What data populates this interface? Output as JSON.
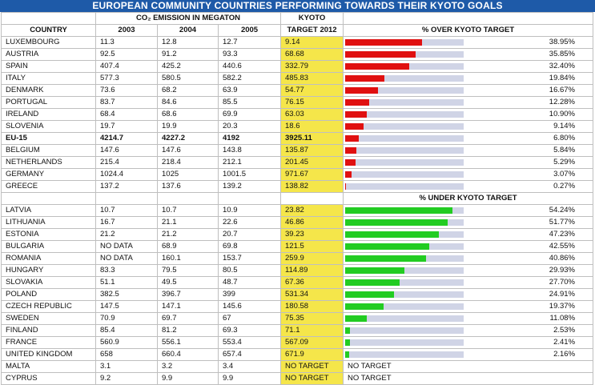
{
  "chart_data": {
    "type": "table",
    "title": "EUROPEAN COMMUNITY COUNTRIES PERFORMING TOWARDS THEIR KYOTO GOALS",
    "headers": {
      "country": "COUNTRY",
      "emission_group": "CO₂ EMISSION IN MEGATON",
      "years": [
        "2003",
        "2004",
        "2005"
      ],
      "kyoto": [
        "KYOTO",
        "TARGET 2012"
      ],
      "over": "% OVER KYOTO TARGET",
      "under": "% UNDER KYOTO TARGET"
    },
    "bar_colors": {
      "over": "#e01010",
      "under": "#22cc22",
      "track": "#d0d4e6"
    },
    "over_rows": [
      {
        "country": "LUXEMBOURG",
        "y2003": "11.3",
        "y2004": "12.8",
        "y2005": "12.7",
        "kyoto": "9.14",
        "pct": "38.95%",
        "value": 38.95
      },
      {
        "country": "AUSTRIA",
        "y2003": "92.5",
        "y2004": "91.2",
        "y2005": "93.3",
        "kyoto": "68.68",
        "pct": "35.85%",
        "value": 35.85
      },
      {
        "country": "SPAIN",
        "y2003": "407.4",
        "y2004": "425.2",
        "y2005": "440.6",
        "kyoto": "332.79",
        "pct": "32.40%",
        "value": 32.4
      },
      {
        "country": "ITALY",
        "y2003": "577.3",
        "y2004": "580.5",
        "y2005": "582.2",
        "kyoto": "485.83",
        "pct": "19.84%",
        "value": 19.84
      },
      {
        "country": "DENMARK",
        "y2003": "73.6",
        "y2004": "68.2",
        "y2005": "63.9",
        "kyoto": "54.77",
        "pct": "16.67%",
        "value": 16.67
      },
      {
        "country": "PORTUGAL",
        "y2003": "83.7",
        "y2004": "84.6",
        "y2005": "85.5",
        "kyoto": "76.15",
        "pct": "12.28%",
        "value": 12.28
      },
      {
        "country": "IRELAND",
        "y2003": "68.4",
        "y2004": "68.6",
        "y2005": "69.9",
        "kyoto": "63.03",
        "pct": "10.90%",
        "value": 10.9
      },
      {
        "country": "SLOVENIA",
        "y2003": "19.7",
        "y2004": "19.9",
        "y2005": "20.3",
        "kyoto": "18.6",
        "pct": "9.14%",
        "value": 9.14
      },
      {
        "country": "EU-15",
        "y2003": "4214.7",
        "y2004": "4227.2",
        "y2005": "4192",
        "kyoto": "3925.11",
        "pct": "6.80%",
        "value": 6.8,
        "bold": true
      },
      {
        "country": "BELGIUM",
        "y2003": "147.6",
        "y2004": "147.6",
        "y2005": "143.8",
        "kyoto": "135.87",
        "pct": "5.84%",
        "value": 5.84
      },
      {
        "country": "NETHERLANDS",
        "y2003": "215.4",
        "y2004": "218.4",
        "y2005": "212.1",
        "kyoto": "201.45",
        "pct": "5.29%",
        "value": 5.29
      },
      {
        "country": "GERMANY",
        "y2003": "1024.4",
        "y2004": "1025",
        "y2005": "1001.5",
        "kyoto": "971.67",
        "pct": "3.07%",
        "value": 3.07
      },
      {
        "country": "GREECE",
        "y2003": "137.2",
        "y2004": "137.6",
        "y2005": "139.2",
        "kyoto": "138.82",
        "pct": "0.27%",
        "value": 0.27
      }
    ],
    "under_rows": [
      {
        "country": "LATVIA",
        "y2003": "10.7",
        "y2004": "10.7",
        "y2005": "10.9",
        "kyoto": "23.82",
        "pct": "54.24%",
        "value": 54.24
      },
      {
        "country": "LITHUANIA",
        "y2003": "16.7",
        "y2004": "21.1",
        "y2005": "22.6",
        "kyoto": "46.86",
        "pct": "51.77%",
        "value": 51.77
      },
      {
        "country": "ESTONIA",
        "y2003": "21.2",
        "y2004": "21.2",
        "y2005": "20.7",
        "kyoto": "39.23",
        "pct": "47.23%",
        "value": 47.23
      },
      {
        "country": "BULGARIA",
        "y2003": "NO DATA",
        "y2004": "68.9",
        "y2005": "69.8",
        "kyoto": "121.5",
        "pct": "42.55%",
        "value": 42.55
      },
      {
        "country": "ROMANIA",
        "y2003": "NO DATA",
        "y2004": "160.1",
        "y2005": "153.7",
        "kyoto": "259.9",
        "pct": "40.86%",
        "value": 40.86
      },
      {
        "country": "HUNGARY",
        "y2003": "83.3",
        "y2004": "79.5",
        "y2005": "80.5",
        "kyoto": "114.89",
        "pct": "29.93%",
        "value": 29.93
      },
      {
        "country": "SLOVAKIA",
        "y2003": "51.1",
        "y2004": "49.5",
        "y2005": "48.7",
        "kyoto": "67.36",
        "pct": "27.70%",
        "value": 27.7
      },
      {
        "country": "POLAND",
        "y2003": "382.5",
        "y2004": "396.7",
        "y2005": "399",
        "kyoto": "531.34",
        "pct": "24.91%",
        "value": 24.91
      },
      {
        "country": "CZECH REPUBLIC",
        "y2003": "147.5",
        "y2004": "147.1",
        "y2005": "145.6",
        "kyoto": "180.58",
        "pct": "19.37%",
        "value": 19.37
      },
      {
        "country": "SWEDEN",
        "y2003": "70.9",
        "y2004": "69.7",
        "y2005": "67",
        "kyoto": "75.35",
        "pct": "11.08%",
        "value": 11.08
      },
      {
        "country": "FINLAND",
        "y2003": "85.4",
        "y2004": "81.2",
        "y2005": "69.3",
        "kyoto": "71.1",
        "pct": "2.53%",
        "value": 2.53
      },
      {
        "country": "FRANCE",
        "y2003": "560.9",
        "y2004": "556.1",
        "y2005": "553.4",
        "kyoto": "567.09",
        "pct": "2.41%",
        "value": 2.41
      },
      {
        "country": "UNITED KINGDOM",
        "y2003": "658",
        "y2004": "660.4",
        "y2005": "657.4",
        "kyoto": "671.9",
        "pct": "2.16%",
        "value": 2.16
      }
    ],
    "no_target_rows": [
      {
        "country": "MALTA",
        "y2003": "3.1",
        "y2004": "3.2",
        "y2005": "3.4",
        "kyoto": "NO TARGET",
        "pct": "NO TARGET"
      },
      {
        "country": "CYPRUS",
        "y2003": "9.2",
        "y2004": "9.9",
        "y2005": "9.9",
        "kyoto": "NO TARGET",
        "pct": "NO TARGET"
      }
    ]
  }
}
